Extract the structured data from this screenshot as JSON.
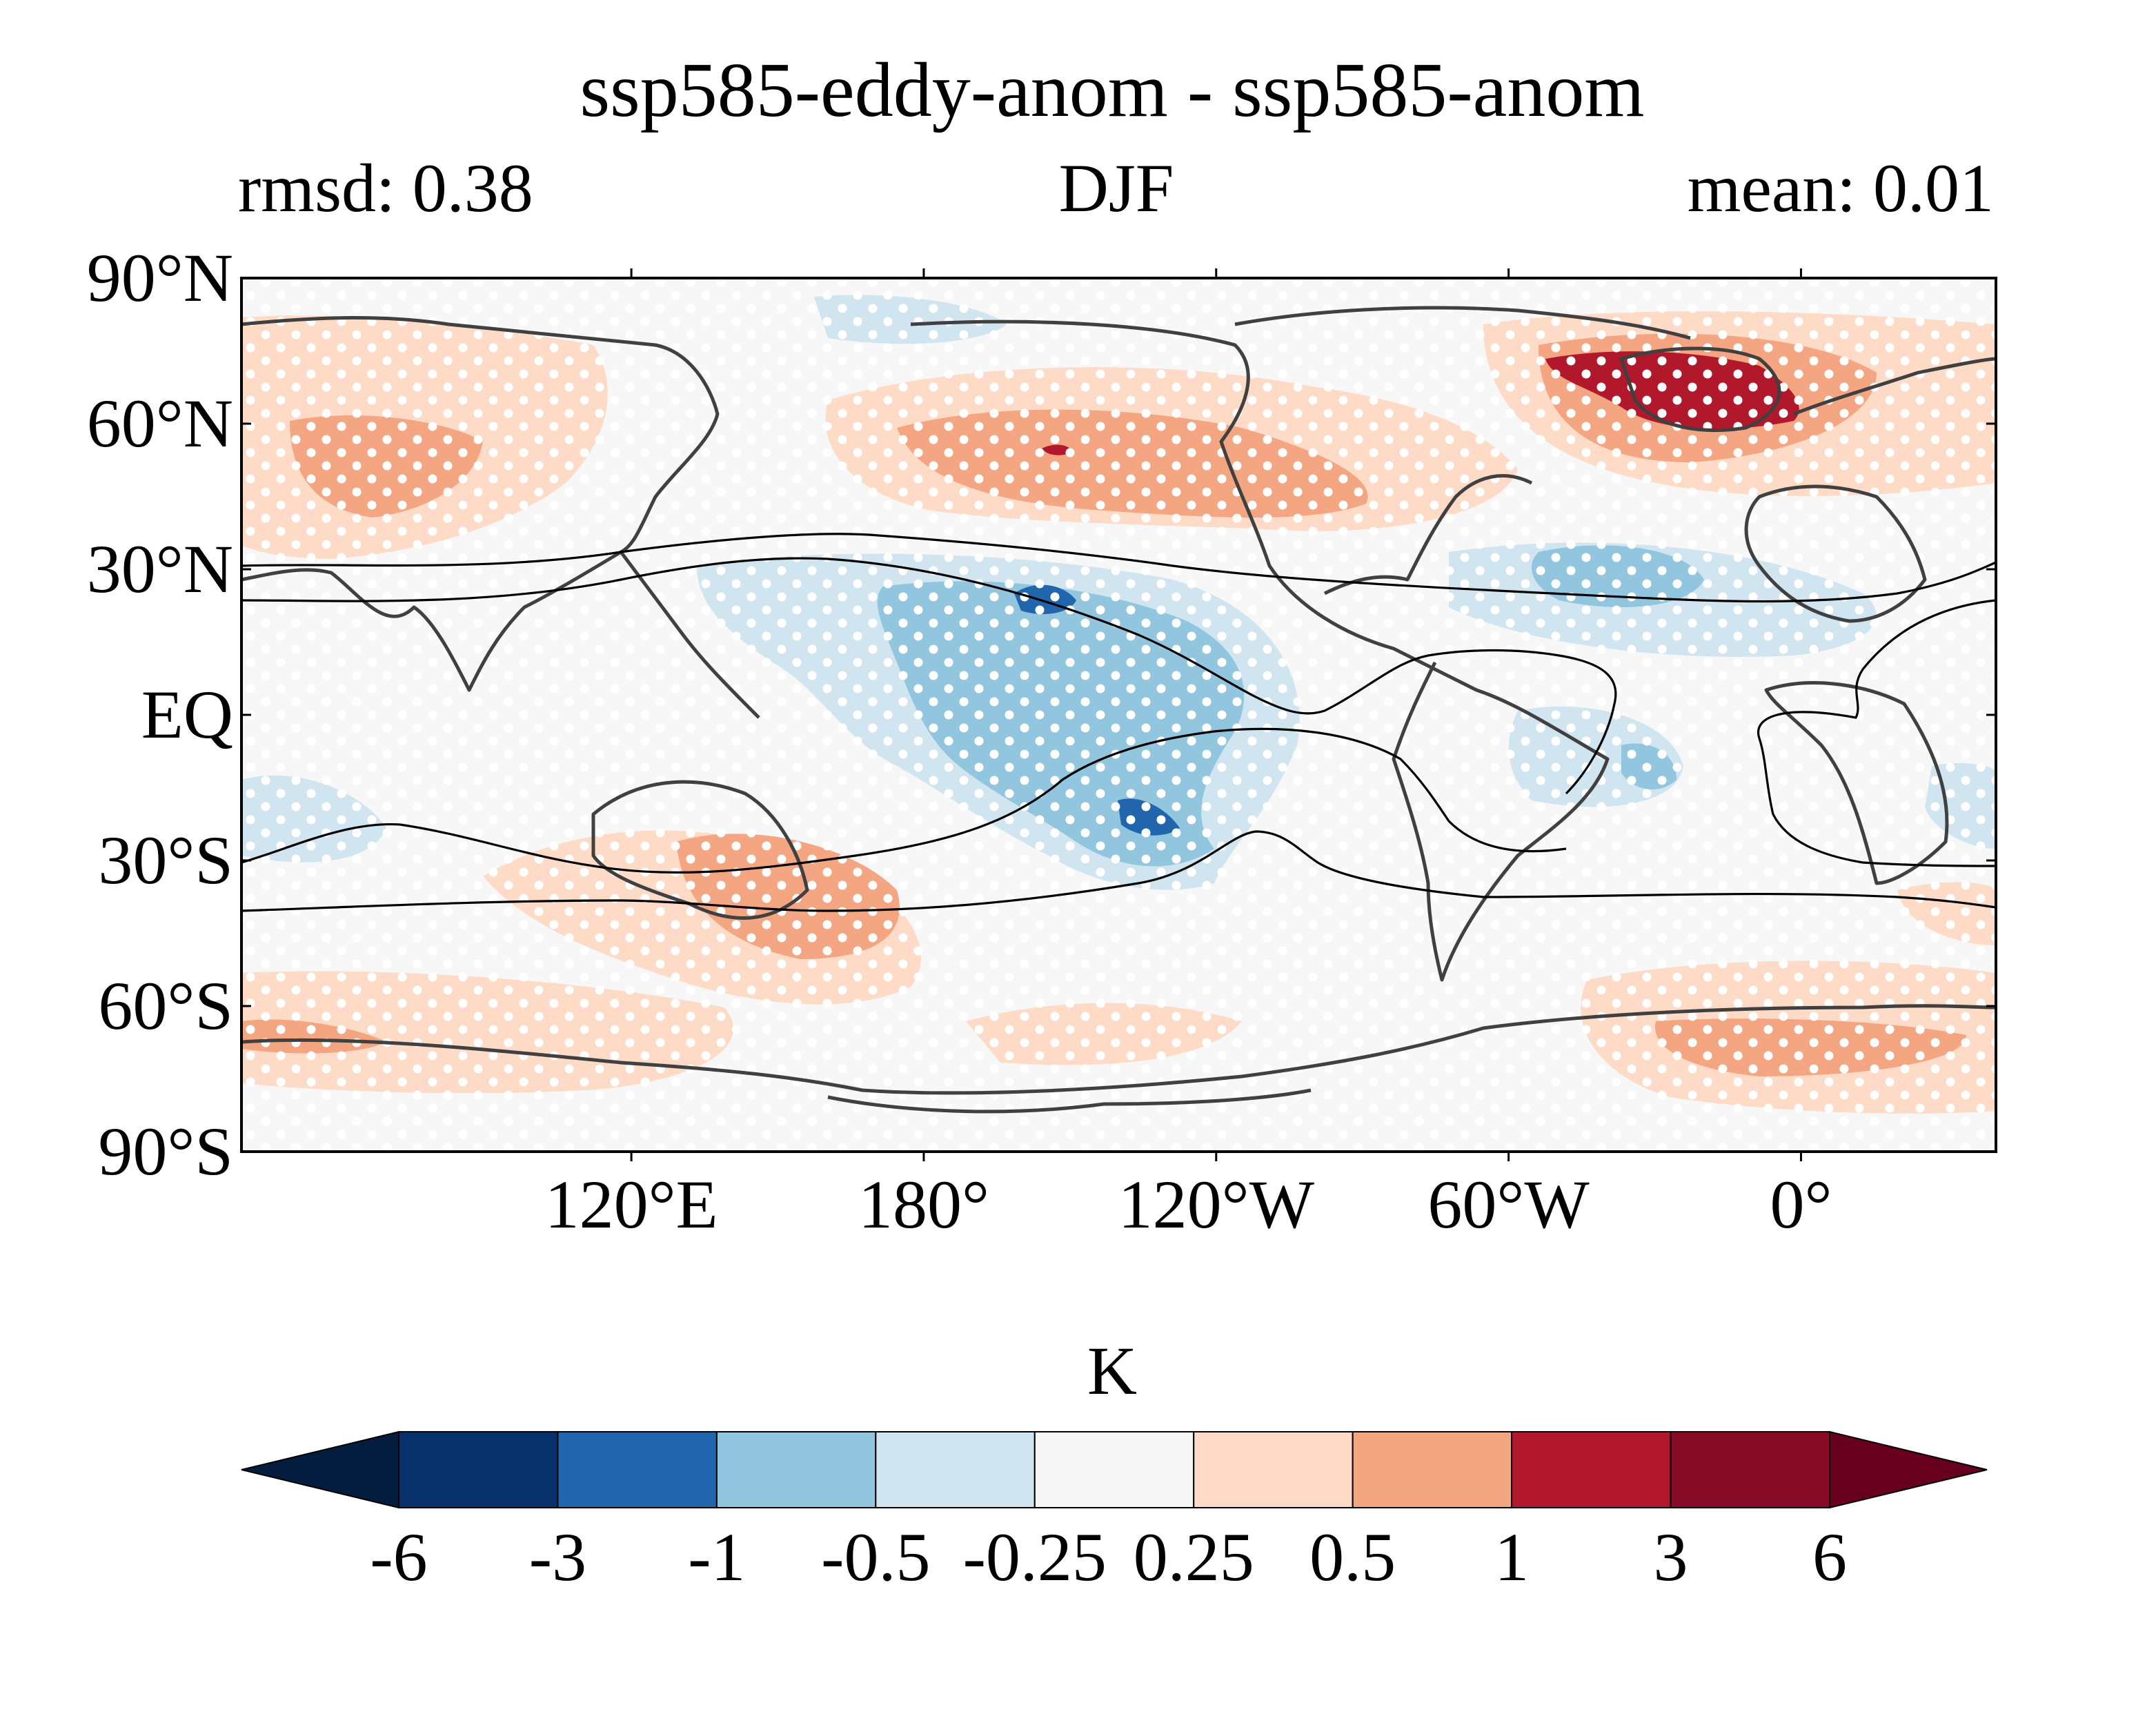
{
  "title": "ssp585-eddy-anom - ssp585-anom",
  "subtitle_left": "rmsd: 0.38",
  "subtitle_center": "DJF",
  "subtitle_right": "mean: 0.01",
  "map": {
    "lon_range": [
      40,
      400
    ],
    "lat_range": [
      -90,
      90
    ],
    "y_ticks": [
      {
        "lat": 90,
        "label": "90°N"
      },
      {
        "lat": 60,
        "label": "60°N"
      },
      {
        "lat": 30,
        "label": "30°N"
      },
      {
        "lat": 0,
        "label": "EQ"
      },
      {
        "lat": -30,
        "label": "30°S"
      },
      {
        "lat": -60,
        "label": "60°S"
      },
      {
        "lat": -90,
        "label": "90°S"
      }
    ],
    "x_ticks": [
      {
        "lon": 120,
        "label": "120°E"
      },
      {
        "lon": 180,
        "label": "180°"
      },
      {
        "lon": 240,
        "label": "120°W"
      },
      {
        "lon": 300,
        "label": "60°W"
      },
      {
        "lon": 360,
        "label": "0°"
      }
    ],
    "background_color": "#f7f7f7",
    "coastline_color": "#404040"
  },
  "colorbar": {
    "label": "K",
    "levels": [
      "-6",
      "-3",
      "-1",
      "-0.5",
      "-0.25",
      "0.25",
      "0.5",
      "1",
      "3",
      "6"
    ],
    "colors": [
      "#08306b",
      "#2166ac",
      "#92c5de",
      "#d1e5f0",
      "#f7f7f7",
      "#fddbc7",
      "#f4a582",
      "#b2182b",
      "#870b26"
    ],
    "extend_low_color": "#041c3d",
    "extend_high_color": "#67001f"
  }
}
